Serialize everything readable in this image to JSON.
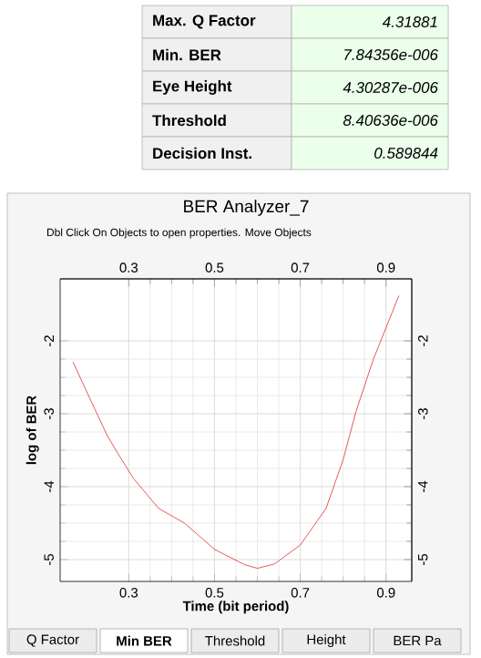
{
  "chart_data": {
    "type": "line",
    "title": "BER Analyzer_7",
    "subtitle": "Dbl Click On Objects to open properties.  Move Objects",
    "xlabel": "Time (bit period)",
    "ylabel": "log of BER",
    "x": [
      0.17,
      0.21,
      0.25,
      0.27,
      0.31,
      0.37,
      0.43,
      0.5,
      0.57,
      0.6,
      0.64,
      0.7,
      0.76,
      0.8,
      0.83,
      0.87,
      0.93
    ],
    "values": [
      -2.29,
      -2.8,
      -3.3,
      -3.5,
      -3.88,
      -4.3,
      -4.5,
      -4.86,
      -5.07,
      -5.12,
      -5.06,
      -4.8,
      -4.3,
      -3.63,
      -2.97,
      -2.26,
      -1.38
    ],
    "color": "#e03030",
    "xlim": [
      0.14,
      0.96
    ],
    "ylim": [
      -5.3,
      -1.15
    ],
    "xticks": [
      0.3,
      0.5,
      0.7,
      0.9
    ],
    "yticks": [
      -5,
      -4,
      -3,
      -2
    ],
    "x2lim": [
      0.14,
      0.96
    ],
    "x2ticks": [
      0.3,
      0.5,
      0.7,
      0.9
    ],
    "y2lim": [
      -5.3,
      -1.15
    ],
    "y2ticks": [
      -5,
      -4,
      -3,
      -2
    ],
    "grid": true,
    "marker": "none",
    "line_style": "solid",
    "annotations": [
      "Max. Q Factor",
      "4.31881",
      "Min. BER",
      "7.84356e-006",
      "Eye Height",
      "4.30287e-006",
      "Threshold",
      "8.40636e-006",
      "Decision Inst.",
      "0.589844",
      "Q Factor",
      "Min BER",
      "Threshold",
      "Height",
      "BER Pa"
    ]
  }
}
